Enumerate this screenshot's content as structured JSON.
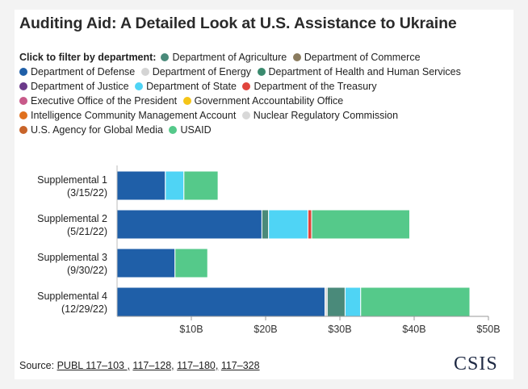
{
  "title": "Auditing Aid: A Detailed Look at U.S. Assistance to Ukraine",
  "legend": {
    "prompt": "Click to filter by department:",
    "items": [
      {
        "name": "Department of Agriculture",
        "color": "#4a8a7a"
      },
      {
        "name": "Department of Commerce",
        "color": "#8a7b5e"
      },
      {
        "name": "Department of Defense",
        "color": "#1f5fa8"
      },
      {
        "name": "Department of Energy",
        "color": "#d4d4d4"
      },
      {
        "name": "Department of Health and Human Services",
        "color": "#3a8a6e"
      },
      {
        "name": "Department of Justice",
        "color": "#6b3a8a"
      },
      {
        "name": "Department of State",
        "color": "#4fd4f5"
      },
      {
        "name": "Department of the Treasury",
        "color": "#e0443c"
      },
      {
        "name": "Executive Office of the President",
        "color": "#c85a8a"
      },
      {
        "name": "Government Accountability Office",
        "color": "#f5c518"
      },
      {
        "name": "Intelligence Community Management Account",
        "color": "#e0701e"
      },
      {
        "name": "Nuclear Regulatory Commission",
        "color": "#d8d8d8"
      },
      {
        "name": "U.S. Agency for Global Media",
        "color": "#c8642a"
      },
      {
        "name": "USAID",
        "color": "#55c98a"
      }
    ]
  },
  "chart_data": {
    "type": "bar",
    "orientation": "horizontal",
    "stacked": true,
    "categories": [
      [
        "Supplemental 1",
        "(3/15/22)"
      ],
      [
        "Supplemental 2",
        "(5/21/22)"
      ],
      [
        "Supplemental 3",
        "(9/30/22)"
      ],
      [
        "Supplemental 4",
        "(12/29/22)"
      ]
    ],
    "series": [
      {
        "name": "Department of Defense",
        "color": "#1f5fa8",
        "values": [
          6.5,
          19.5,
          7.8,
          28.0
        ]
      },
      {
        "name": "Department of Energy",
        "color": "#d4d4d4",
        "values": [
          0,
          0,
          0,
          0.3
        ]
      },
      {
        "name": "Department of Agriculture",
        "color": "#4a8a7a",
        "values": [
          0,
          0.9,
          0,
          2.4
        ]
      },
      {
        "name": "Department of State",
        "color": "#4fd4f5",
        "values": [
          2.5,
          5.3,
          0,
          2.1
        ]
      },
      {
        "name": "Department of the Treasury",
        "color": "#e0443c",
        "values": [
          0,
          0.5,
          0,
          0
        ]
      },
      {
        "name": "USAID",
        "color": "#55c98a",
        "values": [
          4.6,
          13.2,
          4.4,
          14.7
        ]
      }
    ],
    "xlim": [
      0,
      50
    ],
    "xticks": [
      10,
      20,
      30,
      40,
      50
    ],
    "xtick_labels": [
      "$10B",
      "$20B",
      "$30B",
      "$40B",
      "$50B"
    ],
    "xlabel": "",
    "ylabel": ""
  },
  "source": {
    "label": "Source:",
    "links": [
      "PUBL 117–103 ,",
      "117–128,",
      "117–180,",
      "117–328"
    ]
  },
  "logo": "CSIS"
}
